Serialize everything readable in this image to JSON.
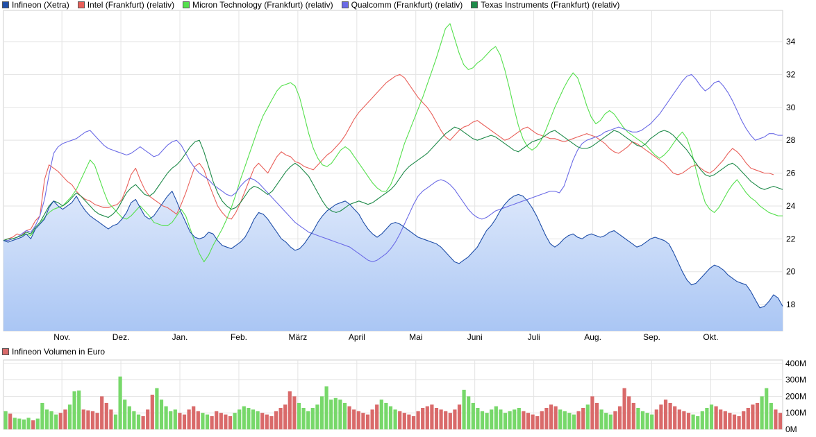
{
  "chart_data": [
    {
      "type": "line",
      "legend_position": "top-left",
      "grid": true,
      "x_ticks": [
        "Nov.",
        "Dez.",
        "Jan.",
        "Feb.",
        "März",
        "April",
        "Mai",
        "Juni",
        "Juli",
        "Aug.",
        "Sep.",
        "Okt."
      ],
      "y_ticks": [
        "18",
        "20",
        "22",
        "24",
        "26",
        "28",
        "30",
        "32",
        "34"
      ],
      "ylim": [
        16.4,
        35.9
      ],
      "series": [
        {
          "name": "Infineon (Xetra)",
          "color": "#1f4ea8",
          "fill": true,
          "values": [
            21.9,
            21.8,
            21.9,
            22.0,
            22.1,
            22.3,
            22.0,
            22.6,
            22.9,
            23.2,
            23.9,
            24.3,
            24.0,
            23.8,
            24.0,
            24.2,
            24.6,
            24.1,
            23.7,
            23.4,
            23.2,
            23.0,
            22.8,
            22.6,
            22.8,
            22.9,
            23.2,
            23.6,
            24.2,
            24.4,
            23.9,
            23.4,
            23.2,
            23.4,
            23.8,
            24.2,
            24.6,
            24.9,
            24.3,
            23.6,
            23.0,
            22.4,
            22.1,
            22.0,
            22.1,
            22.4,
            22.3,
            21.9,
            21.6,
            21.5,
            21.4,
            21.6,
            21.8,
            22.1,
            22.6,
            23.2,
            23.6,
            23.5,
            23.2,
            22.8,
            22.4,
            22.0,
            21.8,
            21.5,
            21.3,
            21.4,
            21.7,
            22.1,
            22.5,
            23.0,
            23.4,
            23.7,
            23.9,
            24.1,
            24.2,
            24.3,
            24.1,
            23.8,
            23.5,
            23.0,
            22.6,
            22.3,
            22.1,
            22.3,
            22.6,
            22.9,
            23.0,
            22.9,
            22.7,
            22.5,
            22.3,
            22.1,
            22.0,
            21.9,
            21.8,
            21.7,
            21.5,
            21.2,
            20.9,
            20.6,
            20.5,
            20.7,
            20.9,
            21.2,
            21.5,
            22.0,
            22.5,
            22.8,
            23.2,
            23.7,
            24.1,
            24.4,
            24.6,
            24.7,
            24.6,
            24.3,
            23.9,
            23.4,
            22.8,
            22.2,
            21.7,
            21.5,
            21.7,
            22.0,
            22.2,
            22.3,
            22.1,
            22.0,
            22.2,
            22.3,
            22.2,
            22.1,
            22.2,
            22.4,
            22.5,
            22.3,
            22.1,
            21.9,
            21.7,
            21.5,
            21.6,
            21.8,
            22.0,
            22.1,
            22.0,
            21.9,
            21.7,
            21.2,
            20.6,
            20.0,
            19.5,
            19.2,
            19.3,
            19.6,
            19.9,
            20.2,
            20.4,
            20.3,
            20.1,
            19.8,
            19.6,
            19.4,
            19.3,
            19.2,
            18.8,
            18.3,
            17.8,
            17.9,
            18.2,
            18.6,
            18.4,
            17.9
          ]
        },
        {
          "name": "Intel (Frankfurt) (relativ)",
          "color": "#e9605a",
          "values": [
            21.9,
            22.0,
            22.1,
            22.3,
            22.2,
            22.5,
            22.6,
            23.1,
            23.4,
            25.6,
            26.5,
            26.3,
            26.1,
            25.8,
            25.5,
            25.3,
            24.9,
            24.6,
            24.4,
            24.3,
            24.1,
            24.0,
            23.9,
            23.9,
            24.0,
            24.1,
            24.4,
            25.1,
            25.9,
            26.3,
            25.6,
            25.0,
            24.6,
            24.4,
            24.2,
            24.0,
            23.9,
            23.7,
            23.5,
            24.1,
            24.8,
            25.6,
            26.4,
            26.6,
            26.2,
            25.4,
            24.7,
            24.0,
            23.6,
            23.3,
            23.2,
            23.6,
            24.2,
            24.9,
            25.6,
            26.3,
            26.6,
            26.3,
            26.0,
            26.5,
            27.0,
            27.3,
            27.1,
            27.0,
            26.7,
            26.6,
            26.4,
            26.3,
            26.2,
            26.5,
            26.8,
            27.1,
            27.3,
            27.6,
            27.9,
            28.3,
            28.8,
            29.3,
            29.7,
            30.0,
            30.3,
            30.6,
            30.9,
            31.2,
            31.5,
            31.7,
            31.9,
            32.0,
            31.8,
            31.4,
            31.0,
            30.6,
            30.3,
            30.0,
            29.6,
            29.1,
            28.6,
            28.2,
            28.0,
            28.3,
            28.6,
            28.8,
            28.9,
            29.1,
            29.2,
            29.0,
            28.8,
            28.6,
            28.4,
            28.2,
            28.0,
            28.1,
            28.3,
            28.5,
            28.7,
            28.8,
            28.6,
            28.4,
            28.3,
            28.2,
            28.1,
            28.1,
            28.0,
            27.9,
            28.0,
            28.1,
            28.2,
            28.3,
            28.4,
            28.3,
            28.2,
            28.0,
            27.8,
            27.5,
            27.3,
            27.2,
            27.4,
            27.6,
            27.9,
            27.8,
            27.6,
            27.4,
            27.2,
            27.0,
            26.8,
            26.6,
            26.3,
            26.0,
            25.9,
            26.0,
            26.2,
            26.4,
            26.5,
            26.3,
            26.1,
            26.0,
            26.2,
            26.5,
            26.8,
            27.2,
            27.5,
            27.3,
            27.0,
            26.6,
            26.3,
            26.2,
            26.1,
            26.0,
            26.0,
            25.9
          ]
        },
        {
          "name": "Micron Technology (Frankfurt) (relativ)",
          "color": "#55e04d",
          "values": [
            21.9,
            21.9,
            22.0,
            22.1,
            22.2,
            22.3,
            22.2,
            22.6,
            22.9,
            23.3,
            23.6,
            23.8,
            23.9,
            24.0,
            24.3,
            24.6,
            25.0,
            25.6,
            26.2,
            26.8,
            26.5,
            25.7,
            24.9,
            24.2,
            23.9,
            23.6,
            23.3,
            23.2,
            23.4,
            23.7,
            24.0,
            23.7,
            23.4,
            23.0,
            22.9,
            22.8,
            22.8,
            23.0,
            23.4,
            23.8,
            23.4,
            22.6,
            21.8,
            21.1,
            20.6,
            21.0,
            21.6,
            22.1,
            22.6,
            23.2,
            23.9,
            24.7,
            25.6,
            26.4,
            27.2,
            28.0,
            28.8,
            29.5,
            30.0,
            30.5,
            31.0,
            31.3,
            31.4,
            31.5,
            31.3,
            30.6,
            29.5,
            28.4,
            27.5,
            26.9,
            26.5,
            26.4,
            26.6,
            27.0,
            27.4,
            27.6,
            27.4,
            27.0,
            26.6,
            26.2,
            25.8,
            25.4,
            25.1,
            24.9,
            24.9,
            25.3,
            26.0,
            26.9,
            27.8,
            28.5,
            29.2,
            29.9,
            30.6,
            31.4,
            32.2,
            33.0,
            33.9,
            34.8,
            35.1,
            34.2,
            33.3,
            32.6,
            32.3,
            32.4,
            32.7,
            32.9,
            33.2,
            33.5,
            33.7,
            33.2,
            32.3,
            31.2,
            30.0,
            28.9,
            28.1,
            27.6,
            27.4,
            27.6,
            28.0,
            28.6,
            29.3,
            30.0,
            30.6,
            31.2,
            31.7,
            32.1,
            31.8,
            31.0,
            30.1,
            29.4,
            29.0,
            29.2,
            29.6,
            29.8,
            29.6,
            29.2,
            28.8,
            28.5,
            28.3,
            28.1,
            27.9,
            27.7,
            27.4,
            27.1,
            26.9,
            27.1,
            27.4,
            27.8,
            28.2,
            28.5,
            28.1,
            27.3,
            26.2,
            25.1,
            24.2,
            23.8,
            23.6,
            23.9,
            24.4,
            24.9,
            25.3,
            25.6,
            25.2,
            24.8,
            24.5,
            24.3,
            24.0,
            23.8,
            23.6,
            23.5,
            23.4,
            23.4
          ]
        },
        {
          "name": "Qualcomm (Frankfurt) (relativ)",
          "color": "#6b6be6",
          "values": [
            21.9,
            21.9,
            22.0,
            22.1,
            22.3,
            22.5,
            22.4,
            22.8,
            23.4,
            24.4,
            25.9,
            27.2,
            27.6,
            27.8,
            27.9,
            28.0,
            28.1,
            28.3,
            28.5,
            28.6,
            28.3,
            28.0,
            27.7,
            27.5,
            27.4,
            27.3,
            27.2,
            27.1,
            27.2,
            27.4,
            27.6,
            27.4,
            27.2,
            27.0,
            27.1,
            27.4,
            27.7,
            27.9,
            28.0,
            27.7,
            27.2,
            26.7,
            26.3,
            26.0,
            25.8,
            25.6,
            25.3,
            25.1,
            24.9,
            24.7,
            24.6,
            24.8,
            25.2,
            25.5,
            25.7,
            25.6,
            25.4,
            25.1,
            24.8,
            24.5,
            24.2,
            23.9,
            23.6,
            23.3,
            23.0,
            22.8,
            22.6,
            22.4,
            22.3,
            22.2,
            22.1,
            22.0,
            21.9,
            21.8,
            21.7,
            21.6,
            21.5,
            21.3,
            21.1,
            20.9,
            20.7,
            20.6,
            20.7,
            20.9,
            21.1,
            21.4,
            21.8,
            22.3,
            22.9,
            23.5,
            24.1,
            24.6,
            24.9,
            25.1,
            25.3,
            25.5,
            25.6,
            25.5,
            25.3,
            25.0,
            24.6,
            24.2,
            23.8,
            23.5,
            23.3,
            23.2,
            23.3,
            23.5,
            23.7,
            23.8,
            23.9,
            24.0,
            24.1,
            24.2,
            24.3,
            24.4,
            24.5,
            24.6,
            24.7,
            24.8,
            24.9,
            24.9,
            24.8,
            25.2,
            26.0,
            26.8,
            27.4,
            27.8,
            28.0,
            28.1,
            28.2,
            28.3,
            28.5,
            28.6,
            28.7,
            28.8,
            28.7,
            28.6,
            28.5,
            28.5,
            28.6,
            28.8,
            29.0,
            29.3,
            29.6,
            30.0,
            30.4,
            30.8,
            31.2,
            31.6,
            31.9,
            32.0,
            31.7,
            31.3,
            31.0,
            31.2,
            31.5,
            31.6,
            31.3,
            30.9,
            30.4,
            29.8,
            29.2,
            28.7,
            28.3,
            28.0,
            28.1,
            28.2,
            28.4,
            28.4,
            28.3,
            28.3
          ]
        },
        {
          "name": "Texas Instruments (Frankfurt) (relativ)",
          "color": "#1e8a49",
          "values": [
            21.9,
            22.0,
            22.0,
            22.1,
            22.2,
            22.4,
            22.3,
            22.7,
            23.0,
            23.5,
            24.0,
            24.3,
            24.2,
            24.0,
            24.2,
            24.5,
            24.8,
            24.6,
            24.3,
            24.0,
            23.7,
            23.5,
            23.4,
            23.3,
            23.5,
            23.8,
            24.3,
            24.8,
            25.1,
            25.3,
            25.0,
            24.7,
            24.6,
            24.8,
            25.2,
            25.6,
            26.0,
            26.3,
            26.5,
            26.8,
            27.2,
            27.6,
            27.9,
            28.0,
            27.3,
            26.4,
            25.5,
            24.8,
            24.3,
            24.0,
            23.8,
            23.9,
            24.2,
            24.6,
            25.0,
            25.2,
            25.1,
            24.9,
            24.7,
            24.9,
            25.3,
            25.7,
            26.1,
            26.4,
            26.6,
            26.4,
            26.1,
            25.8,
            25.3,
            24.8,
            24.3,
            23.9,
            23.7,
            23.6,
            23.7,
            23.9,
            24.1,
            24.2,
            24.3,
            24.2,
            24.1,
            24.2,
            24.4,
            24.6,
            24.8,
            25.0,
            25.3,
            25.7,
            26.1,
            26.4,
            26.6,
            26.8,
            27.0,
            27.2,
            27.5,
            27.8,
            28.1,
            28.4,
            28.6,
            28.8,
            28.7,
            28.5,
            28.3,
            28.1,
            28.0,
            28.1,
            28.2,
            28.3,
            28.2,
            28.0,
            27.8,
            27.6,
            27.4,
            27.3,
            27.5,
            27.7,
            27.9,
            28.0,
            28.1,
            28.3,
            28.5,
            28.6,
            28.4,
            28.2,
            28.0,
            27.8,
            27.6,
            27.5,
            27.5,
            27.6,
            27.8,
            28.0,
            28.2,
            28.4,
            28.6,
            28.5,
            28.3,
            28.1,
            27.9,
            27.7,
            27.6,
            27.8,
            28.1,
            28.3,
            28.5,
            28.6,
            28.5,
            28.3,
            28.0,
            27.7,
            27.4,
            27.0,
            26.6,
            26.2,
            25.9,
            25.8,
            25.9,
            26.1,
            26.3,
            26.5,
            26.6,
            26.4,
            26.1,
            25.8,
            25.5,
            25.3,
            25.1,
            25.0,
            25.1,
            25.2,
            25.1,
            25.0
          ]
        }
      ]
    },
    {
      "type": "bar",
      "title": "Infineon Volumen in Euro",
      "y_ticks": [
        "0M",
        "100M",
        "200M",
        "300M",
        "400M"
      ],
      "ylim": [
        0,
        420
      ],
      "up_color": "#77d86a",
      "down_color": "#d96a6a",
      "values": [
        110,
        95,
        70,
        65,
        60,
        70,
        55,
        65,
        160,
        120,
        110,
        90,
        100,
        120,
        150,
        230,
        235,
        120,
        115,
        110,
        100,
        200,
        160,
        120,
        90,
        320,
        180,
        140,
        110,
        90,
        80,
        120,
        210,
        250,
        180,
        140,
        110,
        120,
        100,
        90,
        120,
        140,
        110,
        100,
        90,
        80,
        110,
        100,
        90,
        80,
        100,
        120,
        140,
        130,
        120,
        110,
        100,
        90,
        80,
        110,
        130,
        150,
        230,
        200,
        160,
        130,
        110,
        130,
        150,
        200,
        260,
        180,
        190,
        180,
        160,
        140,
        120,
        110,
        100,
        90,
        120,
        150,
        180,
        160,
        140,
        120,
        110,
        100,
        90,
        80,
        110,
        130,
        140,
        150,
        130,
        120,
        110,
        100,
        120,
        150,
        240,
        200,
        160,
        130,
        110,
        100,
        120,
        140,
        120,
        100,
        110,
        120,
        130,
        110,
        100,
        90,
        80,
        110,
        130,
        150,
        140,
        120,
        110,
        100,
        90,
        110,
        130,
        150,
        200,
        160,
        120,
        100,
        90,
        110,
        140,
        250,
        200,
        160,
        130,
        110,
        100,
        90,
        120,
        150,
        180,
        160,
        140,
        120,
        110,
        100,
        90,
        80,
        110,
        130,
        150,
        140,
        120,
        110,
        100,
        90,
        80,
        110,
        130,
        150,
        160,
        200,
        250,
        160,
        120,
        100
      ]
    }
  ]
}
